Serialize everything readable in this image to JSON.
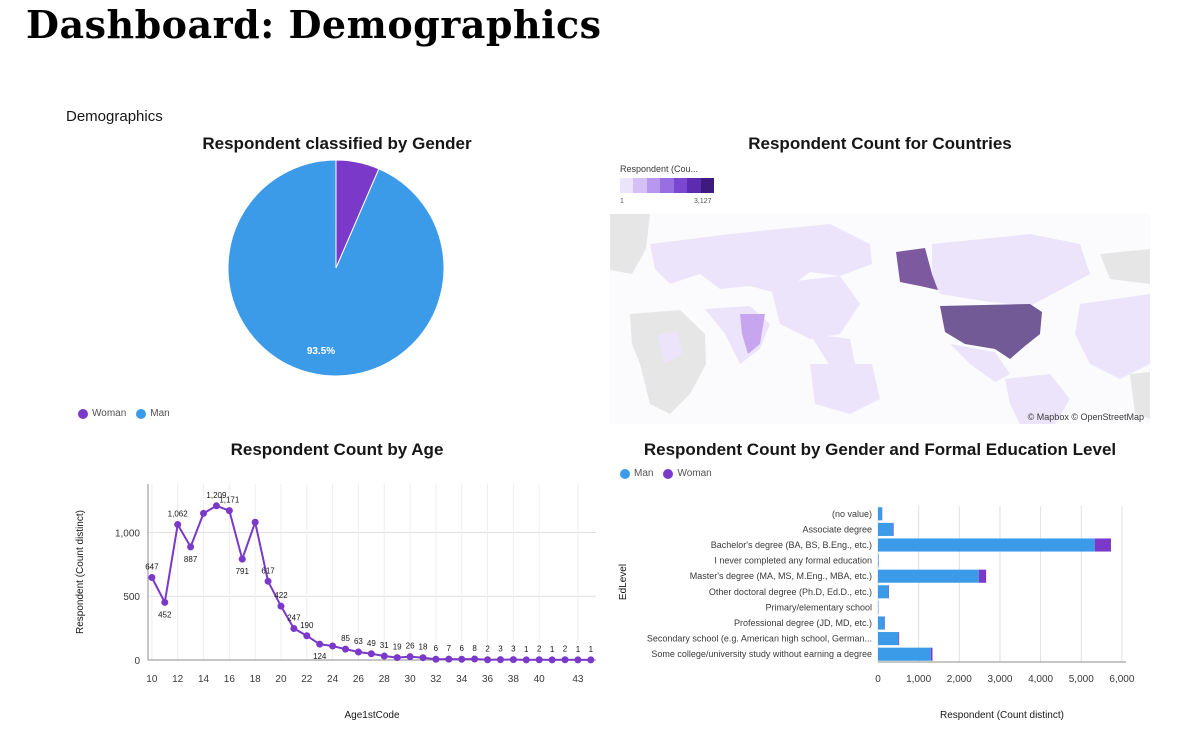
{
  "page": {
    "title": "Dashboard: Demographics",
    "section": "Demographics"
  },
  "colors": {
    "man": "#3b9be8",
    "woman": "#7b39c9",
    "line": "#7b39c9",
    "grid": "#e0e0e0"
  },
  "gender_chart": {
    "title": "Respondent classified by Gender",
    "legend": [
      "Woman",
      "Man"
    ],
    "slice_label": "93.5%"
  },
  "map_chart": {
    "title": "Respondent Count for Countries",
    "legend_title": "Respondent (Cou...",
    "legend_min": "1",
    "legend_max": "3,127",
    "attribution": "© Mapbox © OpenStreetMap"
  },
  "age_chart": {
    "title": "Respondent Count by Age",
    "xlabel": "Age1stCode",
    "ylabel": "Respondent (Count distinct)",
    "ytick_labels": [
      "0",
      "500",
      "1,000"
    ],
    "xtick_labels": [
      "10",
      "12",
      "14",
      "16",
      "18",
      "20",
      "22",
      "24",
      "26",
      "28",
      "30",
      "32",
      "34",
      "36",
      "38",
      "40",
      "43"
    ]
  },
  "edu_chart": {
    "title": "Respondent Count by Gender and Formal Education Level",
    "legend": [
      "Man",
      "Woman"
    ],
    "xlabel": "Respondent (Count distinct)",
    "ylabel": "EdLevel",
    "xtick_labels": [
      "0",
      "1,000",
      "2,000",
      "3,000",
      "4,000",
      "5,000",
      "6,000"
    ]
  },
  "chart_data": [
    {
      "type": "pie",
      "title": "Respondent classified by Gender",
      "categories": [
        "Woman",
        "Man"
      ],
      "values": [
        6.5,
        93.5
      ],
      "unit": "percent"
    },
    {
      "type": "line",
      "title": "Respondent Count by Age",
      "xlabel": "Age1stCode",
      "ylabel": "Respondent (Count distinct)",
      "x": [
        10,
        11,
        12,
        13,
        14,
        15,
        16,
        17,
        18,
        19,
        20,
        21,
        22,
        23,
        24,
        25,
        26,
        27,
        28,
        29,
        30,
        31,
        32,
        33,
        34,
        35,
        36,
        37,
        38,
        39,
        40,
        41,
        42,
        43,
        44
      ],
      "values": [
        647,
        452,
        1062,
        887,
        1150,
        1209,
        1171,
        791,
        1080,
        617,
        422,
        247,
        190,
        124,
        110,
        85,
        63,
        49,
        31,
        19,
        26,
        18,
        6,
        7,
        6,
        8,
        2,
        3,
        3,
        1,
        2,
        1,
        2,
        1,
        1
      ],
      "point_labels": [
        "647",
        "452",
        "1,062",
        "887",
        "",
        "1,209",
        "1,171",
        "791",
        "",
        "617",
        "422",
        "247",
        "190",
        "124",
        "",
        "85",
        "63",
        "49",
        "31",
        "19",
        "26",
        "18",
        "6",
        "7",
        "6",
        "8",
        "2",
        "3",
        "3",
        "1",
        "2",
        "1",
        "2",
        "1",
        "1"
      ],
      "label_below": [
        false,
        true,
        false,
        true,
        false,
        false,
        false,
        true,
        false,
        false,
        false,
        false,
        false,
        true,
        false,
        false,
        false,
        false,
        false,
        false,
        false,
        false,
        false,
        false,
        false,
        false,
        false,
        false,
        false,
        false,
        false,
        false,
        false,
        false,
        false
      ],
      "ylim": [
        0,
        1380
      ],
      "yticks": [
        0,
        500,
        1000
      ],
      "xlim": [
        9.7,
        44.4
      ],
      "xticks": [
        10,
        12,
        14,
        16,
        18,
        20,
        22,
        24,
        26,
        28,
        30,
        32,
        34,
        36,
        38,
        40,
        43
      ],
      "grid": true
    },
    {
      "type": "bar",
      "orientation": "horizontal",
      "stacked": true,
      "title": "Respondent Count by Gender and Formal Education Level",
      "xlabel": "Respondent (Count distinct)",
      "ylabel": "EdLevel",
      "categories": [
        "(no value)",
        "Associate degree",
        "Bachelor's degree (BA, BS, B.Eng., etc.)",
        "I never completed any formal education",
        "Master's degree (MA, MS, M.Eng., MBA, etc.)",
        "Other doctoral degree (Ph.D, Ed.D., etc.)",
        "Primary/elementary school",
        "Professional degree (JD, MD, etc.)",
        "Secondary school (e.g. American high school, German...",
        "Some college/university study without earning a degree"
      ],
      "series": [
        {
          "name": "Man",
          "values": [
            100,
            370,
            5330,
            15,
            2480,
            260,
            10,
            160,
            500,
            1300
          ]
        },
        {
          "name": "Woman",
          "values": [
            5,
            15,
            400,
            2,
            180,
            10,
            2,
            8,
            20,
            40
          ]
        }
      ],
      "xlim": [
        0,
        6100
      ],
      "xticks": [
        0,
        1000,
        2000,
        3000,
        4000,
        5000,
        6000
      ],
      "grid": true
    }
  ]
}
